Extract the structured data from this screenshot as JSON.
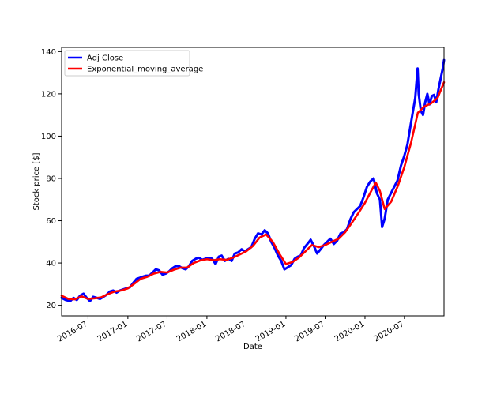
{
  "chart_data": {
    "type": "line",
    "xlabel": "Date",
    "ylabel": "Stock price [$]",
    "xlim": [
      "2016-03-01",
      "2020-12-31"
    ],
    "ylim": [
      15,
      142
    ],
    "x_ticks": [
      "2016-07",
      "2017-01",
      "2017-07",
      "2018-01",
      "2018-07",
      "2019-01",
      "2019-07",
      "2020-01",
      "2020-07"
    ],
    "y_ticks": [
      20,
      40,
      60,
      80,
      100,
      120,
      140
    ],
    "grid": false,
    "legend_position": "top-left",
    "series": [
      {
        "name": "Adj Close",
        "color": "#0000ff",
        "points": [
          [
            "2016-03-01",
            23.5
          ],
          [
            "2016-03-20",
            22.5
          ],
          [
            "2016-04-10",
            22.0
          ],
          [
            "2016-04-25",
            23.5
          ],
          [
            "2016-05-10",
            22.5
          ],
          [
            "2016-05-25",
            24.5
          ],
          [
            "2016-06-10",
            25.5
          ],
          [
            "2016-06-25",
            23.5
          ],
          [
            "2016-07-10",
            22.0
          ],
          [
            "2016-07-25",
            24.0
          ],
          [
            "2016-08-10",
            23.5
          ],
          [
            "2016-08-25",
            23.0
          ],
          [
            "2016-09-10",
            24.0
          ],
          [
            "2016-09-25",
            25.0
          ],
          [
            "2016-10-10",
            26.5
          ],
          [
            "2016-10-25",
            27.0
          ],
          [
            "2016-11-10",
            26.0
          ],
          [
            "2016-11-25",
            27.0
          ],
          [
            "2016-12-10",
            27.5
          ],
          [
            "2016-12-25",
            28.0
          ],
          [
            "2017-01-10",
            28.5
          ],
          [
            "2017-01-25",
            30.5
          ],
          [
            "2017-02-10",
            32.5
          ],
          [
            "2017-02-25",
            33.0
          ],
          [
            "2017-03-10",
            33.5
          ],
          [
            "2017-03-25",
            34.0
          ],
          [
            "2017-04-10",
            34.0
          ],
          [
            "2017-04-25",
            35.5
          ],
          [
            "2017-05-10",
            37.0
          ],
          [
            "2017-05-25",
            36.5
          ],
          [
            "2017-06-10",
            34.5
          ],
          [
            "2017-06-25",
            35.0
          ],
          [
            "2017-07-10",
            36.0
          ],
          [
            "2017-07-25",
            37.5
          ],
          [
            "2017-08-10",
            38.5
          ],
          [
            "2017-08-25",
            38.5
          ],
          [
            "2017-09-10",
            37.5
          ],
          [
            "2017-09-25",
            37.0
          ],
          [
            "2017-10-10",
            38.5
          ],
          [
            "2017-10-25",
            41.0
          ],
          [
            "2017-11-10",
            42.0
          ],
          [
            "2017-11-25",
            42.5
          ],
          [
            "2017-12-10",
            41.5
          ],
          [
            "2017-12-25",
            42.0
          ],
          [
            "2018-01-10",
            42.5
          ],
          [
            "2018-01-25",
            42.0
          ],
          [
            "2018-02-10",
            39.5
          ],
          [
            "2018-02-25",
            43.0
          ],
          [
            "2018-03-10",
            43.5
          ],
          [
            "2018-03-25",
            41.0
          ],
          [
            "2018-04-10",
            42.0
          ],
          [
            "2018-04-25",
            41.0
          ],
          [
            "2018-05-10",
            44.5
          ],
          [
            "2018-05-25",
            45.0
          ],
          [
            "2018-06-10",
            46.5
          ],
          [
            "2018-06-25",
            45.5
          ],
          [
            "2018-07-10",
            46.5
          ],
          [
            "2018-07-25",
            47.5
          ],
          [
            "2018-08-10",
            51.5
          ],
          [
            "2018-08-25",
            54.0
          ],
          [
            "2018-09-10",
            53.5
          ],
          [
            "2018-09-25",
            55.5
          ],
          [
            "2018-10-10",
            54.0
          ],
          [
            "2018-10-25",
            50.0
          ],
          [
            "2018-11-10",
            47.0
          ],
          [
            "2018-11-25",
            43.5
          ],
          [
            "2018-12-10",
            41.0
          ],
          [
            "2018-12-25",
            37.0
          ],
          [
            "2019-01-10",
            38.0
          ],
          [
            "2019-01-25",
            39.0
          ],
          [
            "2019-02-10",
            42.0
          ],
          [
            "2019-02-25",
            43.0
          ],
          [
            "2019-03-10",
            43.5
          ],
          [
            "2019-03-25",
            47.0
          ],
          [
            "2019-04-10",
            49.0
          ],
          [
            "2019-04-25",
            51.0
          ],
          [
            "2019-05-10",
            48.0
          ],
          [
            "2019-05-25",
            44.5
          ],
          [
            "2019-06-10",
            46.5
          ],
          [
            "2019-06-25",
            48.5
          ],
          [
            "2019-07-10",
            50.0
          ],
          [
            "2019-07-25",
            51.5
          ],
          [
            "2019-08-10",
            49.0
          ],
          [
            "2019-08-25",
            50.5
          ],
          [
            "2019-09-10",
            54.0
          ],
          [
            "2019-09-25",
            54.5
          ],
          [
            "2019-10-10",
            56.0
          ],
          [
            "2019-10-25",
            60.5
          ],
          [
            "2019-11-10",
            64.0
          ],
          [
            "2019-11-25",
            65.5
          ],
          [
            "2019-12-10",
            67.0
          ],
          [
            "2019-12-25",
            71.0
          ],
          [
            "2020-01-10",
            76.0
          ],
          [
            "2020-01-25",
            78.5
          ],
          [
            "2020-02-10",
            80.0
          ],
          [
            "2020-02-25",
            73.0
          ],
          [
            "2020-03-10",
            70.0
          ],
          [
            "2020-03-20",
            57.0
          ],
          [
            "2020-04-01",
            61.0
          ],
          [
            "2020-04-15",
            70.0
          ],
          [
            "2020-04-30",
            73.0
          ],
          [
            "2020-05-15",
            76.0
          ],
          [
            "2020-05-30",
            79.0
          ],
          [
            "2020-06-15",
            86.0
          ],
          [
            "2020-06-30",
            90.5
          ],
          [
            "2020-07-15",
            96.0
          ],
          [
            "2020-07-31",
            106.0
          ],
          [
            "2020-08-10",
            112.0
          ],
          [
            "2020-08-20",
            118.0
          ],
          [
            "2020-08-31",
            132.0
          ],
          [
            "2020-09-05",
            120.0
          ],
          [
            "2020-09-15",
            112.0
          ],
          [
            "2020-09-25",
            110.0
          ],
          [
            "2020-10-05",
            116.0
          ],
          [
            "2020-10-15",
            120.0
          ],
          [
            "2020-10-25",
            115.0
          ],
          [
            "2020-11-05",
            119.0
          ],
          [
            "2020-11-15",
            119.5
          ],
          [
            "2020-11-25",
            116.0
          ],
          [
            "2020-12-05",
            122.0
          ],
          [
            "2020-12-15",
            127.0
          ],
          [
            "2020-12-25",
            132.0
          ],
          [
            "2020-12-31",
            136.0
          ]
        ]
      },
      {
        "name": "Exponential_moving_average",
        "color": "#ff0000",
        "points": [
          [
            "2016-03-01",
            24.5
          ],
          [
            "2016-04-01",
            23.0
          ],
          [
            "2016-05-01",
            22.8
          ],
          [
            "2016-06-01",
            24.2
          ],
          [
            "2016-07-01",
            23.0
          ],
          [
            "2016-08-01",
            23.3
          ],
          [
            "2016-09-01",
            23.8
          ],
          [
            "2016-10-01",
            25.3
          ],
          [
            "2016-11-01",
            26.5
          ],
          [
            "2016-12-01",
            27.0
          ],
          [
            "2017-01-01",
            28.0
          ],
          [
            "2017-02-01",
            30.3
          ],
          [
            "2017-03-01",
            32.5
          ],
          [
            "2017-04-01",
            33.5
          ],
          [
            "2017-05-01",
            35.0
          ],
          [
            "2017-06-01",
            35.8
          ],
          [
            "2017-07-01",
            35.5
          ],
          [
            "2017-08-01",
            36.8
          ],
          [
            "2017-09-01",
            37.8
          ],
          [
            "2017-10-01",
            37.8
          ],
          [
            "2017-11-01",
            40.0
          ],
          [
            "2017-12-01",
            41.2
          ],
          [
            "2018-01-01",
            41.8
          ],
          [
            "2018-02-01",
            41.3
          ],
          [
            "2018-03-01",
            41.8
          ],
          [
            "2018-04-01",
            41.5
          ],
          [
            "2018-05-01",
            42.5
          ],
          [
            "2018-06-01",
            44.0
          ],
          [
            "2018-07-01",
            45.5
          ],
          [
            "2018-08-01",
            48.0
          ],
          [
            "2018-09-01",
            52.0
          ],
          [
            "2018-10-01",
            53.5
          ],
          [
            "2018-11-01",
            50.0
          ],
          [
            "2018-12-01",
            44.5
          ],
          [
            "2019-01-01",
            39.5
          ],
          [
            "2019-02-01",
            40.5
          ],
          [
            "2019-03-01",
            42.5
          ],
          [
            "2019-04-01",
            45.5
          ],
          [
            "2019-05-01",
            48.5
          ],
          [
            "2019-06-01",
            47.5
          ],
          [
            "2019-07-01",
            48.5
          ],
          [
            "2019-08-01",
            50.0
          ],
          [
            "2019-09-01",
            51.5
          ],
          [
            "2019-10-01",
            54.5
          ],
          [
            "2019-11-01",
            59.0
          ],
          [
            "2019-12-01",
            63.5
          ],
          [
            "2020-01-01",
            68.5
          ],
          [
            "2020-02-01",
            74.5
          ],
          [
            "2020-02-20",
            78.0
          ],
          [
            "2020-03-10",
            74.0
          ],
          [
            "2020-04-01",
            65.5
          ],
          [
            "2020-05-01",
            69.0
          ],
          [
            "2020-06-01",
            76.5
          ],
          [
            "2020-07-01",
            85.5
          ],
          [
            "2020-08-01",
            97.0
          ],
          [
            "2020-09-01",
            111.0
          ],
          [
            "2020-10-01",
            114.0
          ],
          [
            "2020-11-01",
            115.5
          ],
          [
            "2020-12-01",
            118.0
          ],
          [
            "2020-12-31",
            125.5
          ]
        ]
      }
    ]
  }
}
